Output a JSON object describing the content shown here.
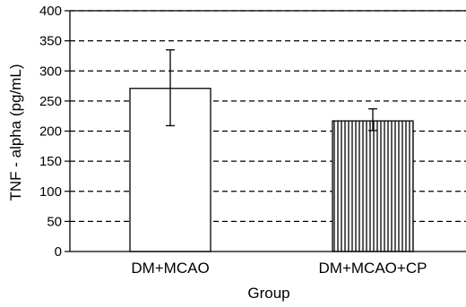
{
  "chart_data": {
    "type": "bar",
    "title": "",
    "xlabel": "Group",
    "ylabel": "TNF - alpha (pg/mL)",
    "ylim": [
      0,
      400
    ],
    "yticks": [
      0,
      50,
      100,
      150,
      200,
      250,
      300,
      350,
      400
    ],
    "grid": "horizontal-dashed",
    "categories": [
      "DM+MCAO",
      "DM+MCAO+CP"
    ],
    "values": [
      271,
      217
    ],
    "errors": [
      {
        "low": 209,
        "high": 335
      },
      {
        "low": 201,
        "high": 237
      }
    ],
    "fills": [
      "plain",
      "vertical-hatch"
    ]
  }
}
